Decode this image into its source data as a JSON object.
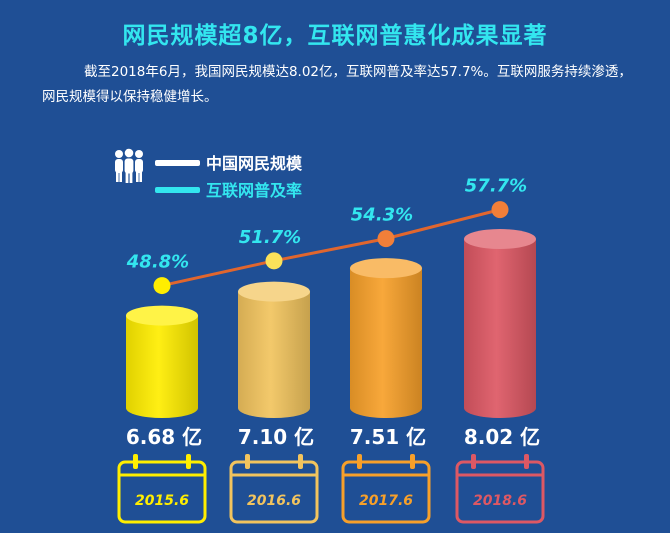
{
  "header": {
    "title": "网民规模超8亿，互联网普惠化成果显著",
    "subtitle": "截至2018年6月，我国网民规模达8.02亿，互联网普及率达57.7%。互联网服务持续渗透，网民规模得以保持稳健增长。"
  },
  "colors": {
    "background": "#1f4f95",
    "title": "#33e6ef",
    "line": "#e0662e",
    "cylinders": [
      "#ffee00",
      "#f2c45e",
      "#f7a02a",
      "#dd5864"
    ]
  },
  "chart_data": {
    "type": "bar",
    "legend": {
      "position": "top-left",
      "entries": [
        "中国网民规模",
        "互联网普及率"
      ]
    },
    "categories": [
      "2015.6",
      "2016.6",
      "2017.6",
      "2018.6"
    ],
    "series": [
      {
        "name": "中国网民规模",
        "type": "bar",
        "values": [
          6.68,
          7.1,
          7.51,
          8.02
        ],
        "labels": [
          "6.68 亿",
          "7.10 亿",
          "7.51 亿",
          "8.02 亿"
        ]
      },
      {
        "name": "互联网普及率",
        "type": "line",
        "values": [
          48.8,
          51.7,
          54.3,
          57.7
        ],
        "labels": [
          "48.8%",
          "51.7%",
          "54.3%",
          "57.7%"
        ]
      }
    ]
  }
}
